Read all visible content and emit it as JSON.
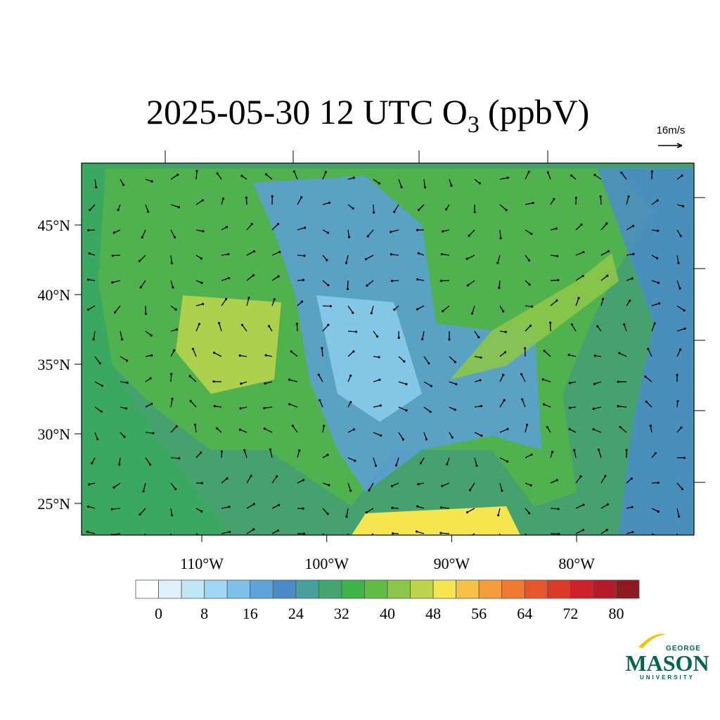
{
  "header": {
    "title": "2025-05-30 12 UTC O",
    "title_subscript": "3",
    "title_suffix": "(ppbV)"
  },
  "wind_reference": {
    "label": "16m/s"
  },
  "map": {
    "lat_ticks": [
      {
        "value": 45,
        "label": "45°N"
      },
      {
        "value": 40,
        "label": "40°N"
      },
      {
        "value": 35,
        "label": "35°N"
      },
      {
        "value": 30,
        "label": "30°N"
      },
      {
        "value": 25,
        "label": "25°N"
      }
    ],
    "lon_ticks": [
      {
        "value": -110,
        "label": "110°W"
      },
      {
        "value": -100,
        "label": "100°W"
      },
      {
        "value": -90,
        "label": "90°W"
      },
      {
        "value": -80,
        "label": "80°W"
      }
    ]
  },
  "colorbar": {
    "range": [
      -4,
      84
    ],
    "ticks": [
      0,
      8,
      16,
      24,
      32,
      40,
      48,
      56,
      64,
      72,
      80
    ],
    "colors": [
      "#ffffff",
      "#dff1fb",
      "#c0e6f7",
      "#9dd7f3",
      "#7fc0ea",
      "#5ea4dc",
      "#4a8cc9",
      "#48a09c",
      "#44a56e",
      "#3cb44a",
      "#5fbd45",
      "#8cc54a",
      "#bdd54d",
      "#f5e54e",
      "#f7c046",
      "#f59d3c",
      "#f07a30",
      "#e8552b",
      "#dc3a29",
      "#d0202b",
      "#b5192a",
      "#8e1a1f"
    ]
  },
  "logo": {
    "top": "GEORGE",
    "main": "MASON",
    "bottom": "UNIVERSITY"
  }
}
